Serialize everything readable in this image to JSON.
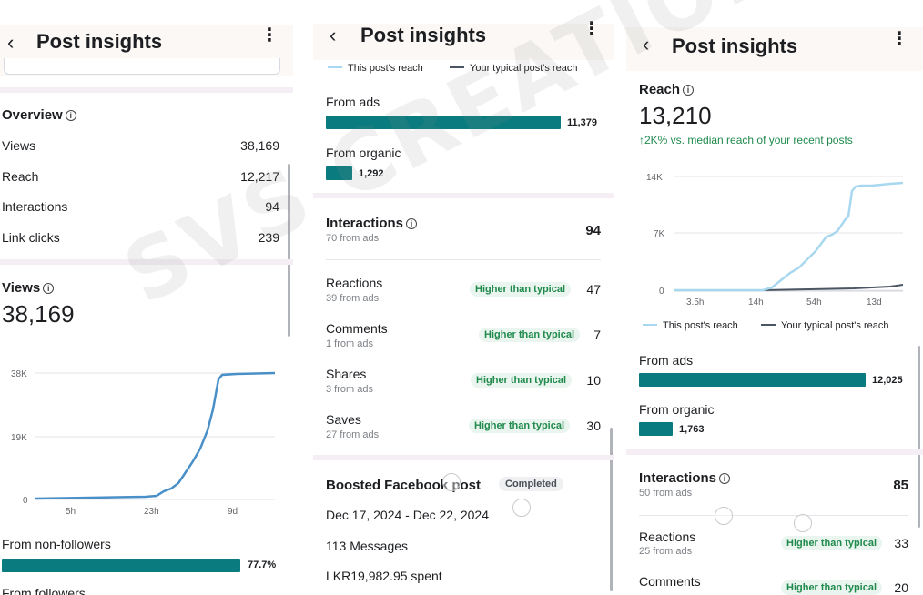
{
  "colors": {
    "teal": "#0a7b7f",
    "line_blue": "#4a90c8",
    "light_blue": "#a8d8f0",
    "gray_line": "#4c5563",
    "green": "#1f8a4c"
  },
  "watermark": "SVS CREATIONS",
  "panel1": {
    "header": {
      "title": "Post insights"
    },
    "overview": {
      "title": "Overview",
      "rows": [
        {
          "label": "Views",
          "value": "38,169"
        },
        {
          "label": "Reach",
          "value": "12,217"
        },
        {
          "label": "Interactions",
          "value": "94"
        },
        {
          "label": "Link clicks",
          "value": "239"
        }
      ]
    },
    "views": {
      "title": "Views",
      "value": "38,169",
      "y_ticks": [
        "38K",
        "19K",
        "0"
      ],
      "x_ticks": [
        "5h",
        "23h",
        "9d"
      ]
    },
    "non_followers": {
      "label": "From non-followers",
      "value": "77.7%",
      "fraction": 0.777
    },
    "followers": {
      "label": "From followers"
    }
  },
  "panel2": {
    "header": {
      "title": "Post insights"
    },
    "legend": {
      "this_post": "This post's reach",
      "typical": "Your typical post's reach"
    },
    "from_ads": {
      "label": "From ads",
      "value": "11,379"
    },
    "from_organic": {
      "label": "From organic",
      "value": "1,292"
    },
    "interactions": {
      "title": "Interactions",
      "sub": "70 from ads",
      "value": "94"
    },
    "rows": [
      {
        "label": "Reactions",
        "sub": "39 from ads",
        "badge": "Higher than typical",
        "value": "47"
      },
      {
        "label": "Comments",
        "sub": "1 from ads",
        "badge": "Higher than typical",
        "value": "7"
      },
      {
        "label": "Shares",
        "sub": "3 from ads",
        "badge": "Higher than typical",
        "value": "10"
      },
      {
        "label": "Saves",
        "sub": "27 from ads",
        "badge": "Higher than typical",
        "value": "30"
      }
    ],
    "boosted": {
      "title": "Boosted Facebook post",
      "status": "Completed",
      "dates": "Dec 17, 2024 - Dec 22, 2024",
      "messages": "113 Messages",
      "spent": "LKR19,982.95 spent"
    }
  },
  "panel3": {
    "header": {
      "title": "Post insights"
    },
    "reach": {
      "title": "Reach",
      "value": "13,210",
      "compare": "↑2K% vs. median reach of your recent posts",
      "y_ticks": [
        "14K",
        "7K",
        "0"
      ],
      "x_ticks": [
        "3.5h",
        "14h",
        "54h",
        "13d"
      ]
    },
    "legend": {
      "this_post": "This post's reach",
      "typical": "Your typical post's reach"
    },
    "from_ads": {
      "label": "From ads",
      "value": "12,025"
    },
    "from_organic": {
      "label": "From organic",
      "value": "1,763"
    },
    "interactions": {
      "title": "Interactions",
      "sub": "50 from ads",
      "value": "85"
    },
    "rows": [
      {
        "label": "Reactions",
        "sub": "25 from ads",
        "badge": "Higher than typical",
        "value": "33"
      },
      {
        "label": "Comments",
        "sub": "",
        "badge": "Higher than typical",
        "value": "20"
      }
    ]
  }
}
